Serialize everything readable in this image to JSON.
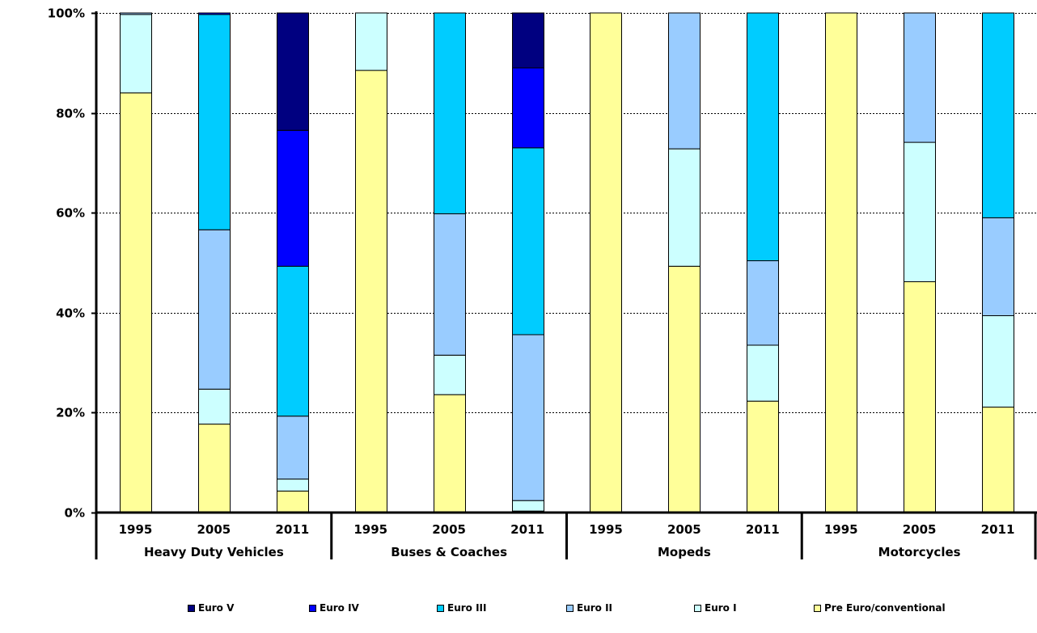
{
  "chart_data": {
    "type": "bar",
    "stacked": true,
    "y_axis": {
      "min": 0,
      "max": 100,
      "ticks": [
        0,
        20,
        40,
        60,
        80,
        100
      ],
      "tick_labels": [
        "0%",
        "20%",
        "40%",
        "60%",
        "80%",
        "100%"
      ],
      "gridlines": "dashed"
    },
    "groups": [
      {
        "name": "Heavy Duty Vehicles",
        "bars": [
          {
            "year": "1995",
            "values": {
              "Pre Euro/conventional": 84,
              "Euro I": 15.7,
              "Euro II": 0.3,
              "Euro III": 0,
              "Euro IV": 0,
              "Euro V": 0
            }
          },
          {
            "year": "2005",
            "values": {
              "Pre Euro/conventional": 17.7,
              "Euro I": 7,
              "Euro II": 31.9,
              "Euro III": 43.1,
              "Euro IV": 0.3,
              "Euro V": 0
            }
          },
          {
            "year": "2011",
            "values": {
              "Pre Euro/conventional": 4.3,
              "Euro I": 2.4,
              "Euro II": 12.6,
              "Euro III": 30,
              "Euro IV": 27.2,
              "Euro V": 23.5
            }
          }
        ]
      },
      {
        "name": "Buses & Coaches",
        "bars": [
          {
            "year": "1995",
            "values": {
              "Pre Euro/conventional": 88.5,
              "Euro I": 11.5,
              "Euro II": 0,
              "Euro III": 0,
              "Euro IV": 0,
              "Euro V": 0
            }
          },
          {
            "year": "2005",
            "values": {
              "Pre Euro/conventional": 23.6,
              "Euro I": 7.9,
              "Euro II": 28.3,
              "Euro III": 40.2,
              "Euro IV": 0,
              "Euro V": 0
            }
          },
          {
            "year": "2011",
            "values": {
              "Pre Euro/conventional": 0.3,
              "Euro I": 2.1,
              "Euro II": 33.2,
              "Euro III": 37.4,
              "Euro IV": 16,
              "Euro V": 11
            }
          }
        ]
      },
      {
        "name": "Mopeds",
        "bars": [
          {
            "year": "1995",
            "values": {
              "Pre Euro/conventional": 100,
              "Euro I": 0,
              "Euro II": 0,
              "Euro III": 0,
              "Euro IV": 0,
              "Euro V": 0
            }
          },
          {
            "year": "2005",
            "values": {
              "Pre Euro/conventional": 49.3,
              "Euro I": 23.5,
              "Euro II": 27.2,
              "Euro III": 0,
              "Euro IV": 0,
              "Euro V": 0
            }
          },
          {
            "year": "2011",
            "values": {
              "Pre Euro/conventional": 22.3,
              "Euro I": 11.2,
              "Euro II": 16.9,
              "Euro III": 49.6,
              "Euro IV": 0,
              "Euro V": 0
            }
          }
        ]
      },
      {
        "name": "Motorcycles",
        "bars": [
          {
            "year": "1995",
            "values": {
              "Pre Euro/conventional": 100,
              "Euro I": 0,
              "Euro II": 0,
              "Euro III": 0,
              "Euro IV": 0,
              "Euro V": 0
            }
          },
          {
            "year": "2005",
            "values": {
              "Pre Euro/conventional": 46.2,
              "Euro I": 27.9,
              "Euro II": 25.9,
              "Euro III": 0,
              "Euro IV": 0,
              "Euro V": 0
            }
          },
          {
            "year": "2011",
            "values": {
              "Pre Euro/conventional": 21.1,
              "Euro I": 18.3,
              "Euro II": 19.6,
              "Euro III": 41,
              "Euro IV": 0,
              "Euro V": 0
            }
          }
        ]
      }
    ],
    "series": [
      {
        "name": "Pre Euro/conventional",
        "color": "#ffff99"
      },
      {
        "name": "Euro I",
        "color": "#ccffff"
      },
      {
        "name": "Euro II",
        "color": "#99ccff"
      },
      {
        "name": "Euro III",
        "color": "#00ccff"
      },
      {
        "name": "Euro IV",
        "color": "#0000ff"
      },
      {
        "name": "Euro V",
        "color": "#000080"
      }
    ],
    "legend": {
      "position": "bottom",
      "order": [
        "Euro V",
        "Euro IV",
        "Euro III",
        "Euro II",
        "Euro I",
        "Pre Euro/conventional"
      ]
    }
  }
}
